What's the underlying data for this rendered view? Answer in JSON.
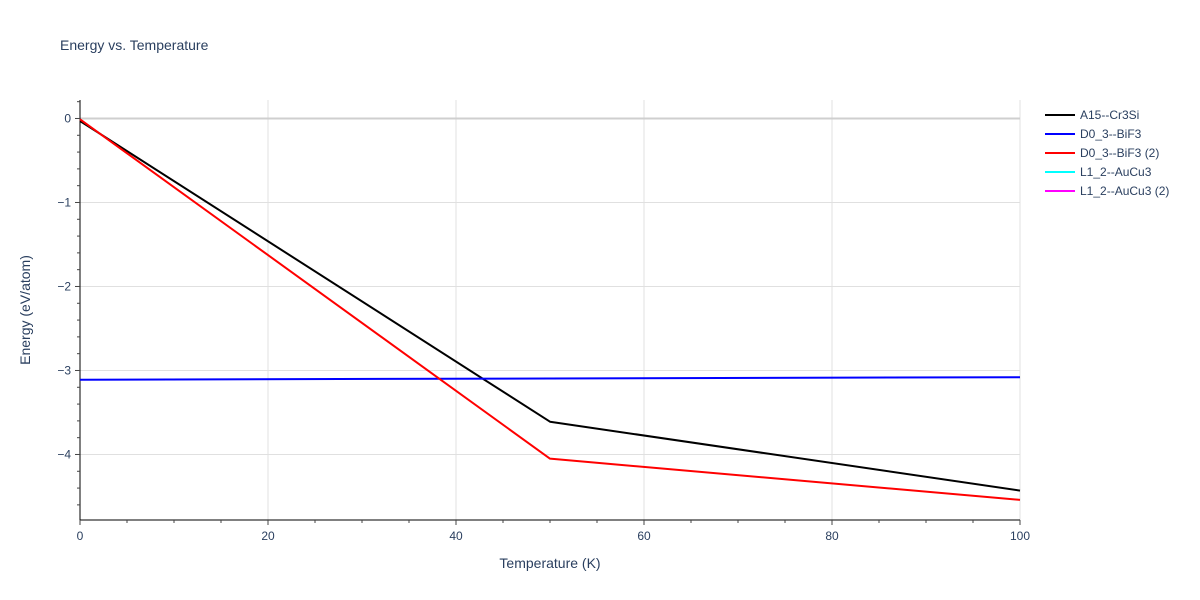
{
  "chart_data": {
    "type": "line",
    "title": "Energy vs. Temperature",
    "xlabel": "Temperature (K)",
    "ylabel": "Energy (eV/atom)",
    "xlim": [
      0,
      100
    ],
    "ylim": [
      -4.78,
      0.22
    ],
    "x_ticks": [
      0,
      20,
      40,
      60,
      80,
      100
    ],
    "y_ticks": [
      0,
      -1,
      -2,
      -3,
      -4
    ],
    "x_tick_labels": [
      "0",
      "20",
      "40",
      "60",
      "80",
      "100"
    ],
    "y_tick_labels": [
      "0",
      "−1",
      "−2",
      "−3",
      "−4"
    ],
    "x_minor_step": 5,
    "y_minor_step": 0.2,
    "grid": true,
    "zero_line": true,
    "legend_position": "top-right",
    "series": [
      {
        "name": "A15--Cr3Si",
        "color": "#000000",
        "x": [
          0,
          50,
          100
        ],
        "y": [
          -0.03,
          -3.61,
          -4.43
        ]
      },
      {
        "name": "D0_3--BiF3",
        "color": "#0000ff",
        "x": [
          0,
          50,
          100
        ],
        "y": [
          -3.11,
          -3.095,
          -3.08
        ]
      },
      {
        "name": "D0_3--BiF3 (2)",
        "color": "#ff0000",
        "x": [
          0,
          50,
          100
        ],
        "y": [
          -0.01,
          -4.05,
          -4.54
        ]
      },
      {
        "name": "L1_2--AuCu3",
        "color": "#00ffff",
        "x": [],
        "y": []
      },
      {
        "name": "L1_2--AuCu3 (2)",
        "color": "#ff00ff",
        "x": [],
        "y": []
      }
    ]
  }
}
